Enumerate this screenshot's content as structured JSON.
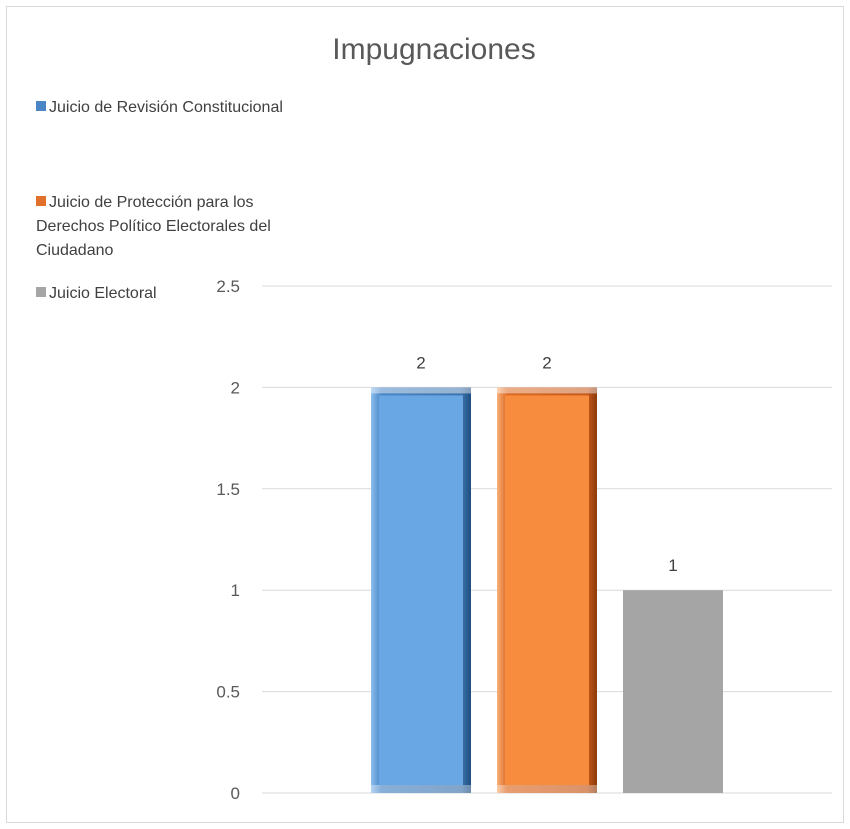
{
  "chart_data": {
    "type": "bar",
    "title": "Impugnaciones",
    "categories": [
      ""
    ],
    "series": [
      {
        "name": "Juicio de Revisión Constitucional",
        "values": [
          2
        ],
        "color": "#5b9bd5"
      },
      {
        "name": "Juicio de Protección para los Derechos Político Electorales del Ciudadano",
        "values": [
          2
        ],
        "color": "#ed7d31"
      },
      {
        "name": "Juicio Electoral",
        "values": [
          1
        ],
        "color": "#a5a5a5"
      }
    ],
    "ylim": [
      0,
      2.5
    ],
    "yticks": [
      "0",
      "0.5",
      "1",
      "1.5",
      "2",
      "2.5"
    ],
    "data_labels": [
      "2",
      "2",
      "1"
    ],
    "grid": true,
    "legend_position": "left"
  }
}
